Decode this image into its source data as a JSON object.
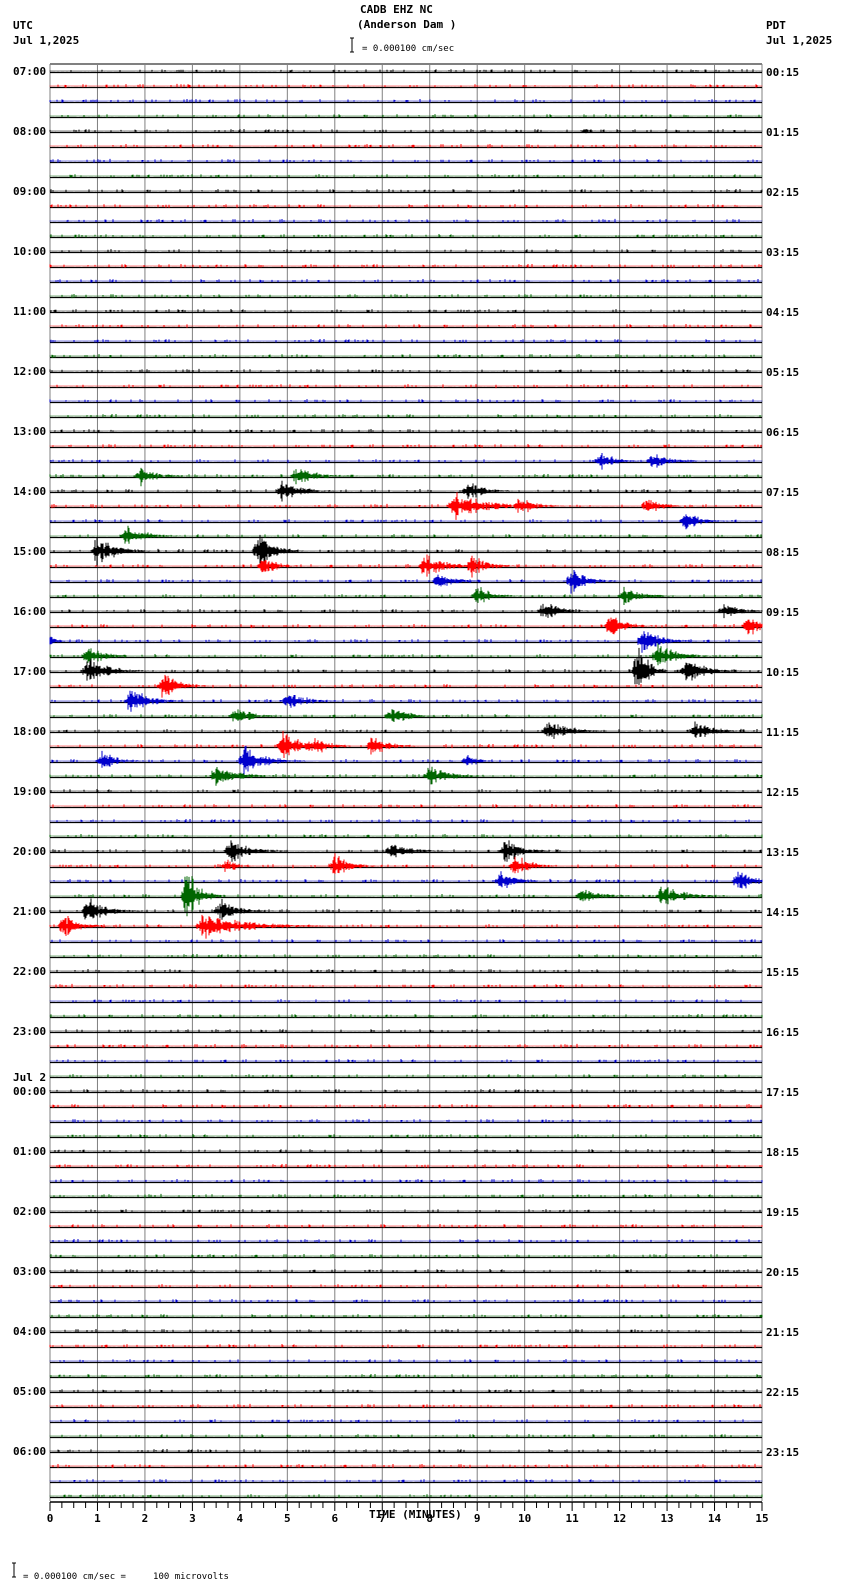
{
  "header": {
    "station": "CADB EHZ NC",
    "location": "(Anderson Dam )",
    "scale_text": "= 0.000100 cm/sec",
    "left_tz": "UTC",
    "left_date": "Jul 1,2025",
    "right_tz": "PDT",
    "right_date": "Jul 1,2025"
  },
  "footer": {
    "xlabel": "TIME (MINUTES)",
    "scale_legend": "= 0.000100 cm/sec =     100 microvolts"
  },
  "colors": {
    "trace_cycle": [
      "#000000",
      "#ff0000",
      "#0000cc",
      "#006600"
    ],
    "grid": "#808080",
    "baseline": "#000000"
  },
  "chart_data": {
    "type": "helicorder",
    "title": "CADB EHZ NC (Anderson Dam )",
    "xlabel": "TIME (MINUTES)",
    "xlim": [
      0,
      15
    ],
    "x_ticks": [
      "0",
      "1",
      "2",
      "3",
      "4",
      "5",
      "6",
      "7",
      "8",
      "9",
      "10",
      "11",
      "12",
      "13",
      "14",
      "15"
    ],
    "trace_minutes": 15,
    "traces_per_hour": 4,
    "left_labels": [
      "07:00",
      "08:00",
      "09:00",
      "10:00",
      "11:00",
      "12:00",
      "13:00",
      "14:00",
      "15:00",
      "16:00",
      "17:00",
      "18:00",
      "19:00",
      "20:00",
      "21:00",
      "22:00",
      "23:00",
      "Jul 2\n00:00",
      "01:00",
      "02:00",
      "03:00",
      "04:00",
      "05:00",
      "06:00"
    ],
    "right_labels": [
      "00:15",
      "01:15",
      "02:15",
      "03:15",
      "04:15",
      "05:15",
      "06:15",
      "07:15",
      "08:15",
      "09:15",
      "10:15",
      "11:15",
      "12:15",
      "13:15",
      "14:15",
      "15:15",
      "16:15",
      "17:15",
      "18:15",
      "19:15",
      "20:15",
      "21:15",
      "22:15",
      "23:15"
    ],
    "events": [
      {
        "row": 4,
        "min": 11.3,
        "amp": 3,
        "dur": 0.2
      },
      {
        "row": 26,
        "min": 11.6,
        "amp": 9,
        "dur": 0.6
      },
      {
        "row": 26,
        "min": 12.7,
        "amp": 8,
        "dur": 0.7
      },
      {
        "row": 27,
        "min": 1.9,
        "amp": 10,
        "dur": 0.6
      },
      {
        "row": 27,
        "min": 5.2,
        "amp": 10,
        "dur": 0.8
      },
      {
        "row": 28,
        "min": 4.9,
        "amp": 12,
        "dur": 0.7
      },
      {
        "row": 28,
        "min": 8.8,
        "amp": 11,
        "dur": 0.6
      },
      {
        "row": 29,
        "min": 8.5,
        "amp": 14,
        "dur": 1.2
      },
      {
        "row": 29,
        "min": 9.9,
        "amp": 10,
        "dur": 0.6
      },
      {
        "row": 29,
        "min": 12.6,
        "amp": 10,
        "dur": 0.5
      },
      {
        "row": 30,
        "min": 13.4,
        "amp": 10,
        "dur": 0.6
      },
      {
        "row": 31,
        "min": 1.6,
        "amp": 10,
        "dur": 0.8
      },
      {
        "row": 32,
        "min": 1.0,
        "amp": 16,
        "dur": 0.7
      },
      {
        "row": 32,
        "min": 4.4,
        "amp": 18,
        "dur": 0.6
      },
      {
        "row": 33,
        "min": 4.5,
        "amp": 11,
        "dur": 0.5
      },
      {
        "row": 33,
        "min": 7.9,
        "amp": 12,
        "dur": 0.8
      },
      {
        "row": 33,
        "min": 8.9,
        "amp": 12,
        "dur": 0.6
      },
      {
        "row": 34,
        "min": 8.2,
        "amp": 9,
        "dur": 0.6
      },
      {
        "row": 34,
        "min": 11.0,
        "amp": 13,
        "dur": 0.6
      },
      {
        "row": 35,
        "min": 9.0,
        "amp": 10,
        "dur": 0.6
      },
      {
        "row": 35,
        "min": 12.1,
        "amp": 9,
        "dur": 0.7
      },
      {
        "row": 36,
        "min": 10.4,
        "amp": 12,
        "dur": 0.6
      },
      {
        "row": 36,
        "min": 14.2,
        "amp": 8,
        "dur": 0.7
      },
      {
        "row": 37,
        "min": 11.8,
        "amp": 12,
        "dur": 0.6
      },
      {
        "row": 37,
        "min": 14.7,
        "amp": 12,
        "dur": 0.5
      },
      {
        "row": 38,
        "min": 12.5,
        "amp": 14,
        "dur": 0.7
      },
      {
        "row": 38,
        "min": 0.0,
        "amp": 5,
        "dur": 0.3
      },
      {
        "row": 39,
        "min": 0.8,
        "amp": 12,
        "dur": 0.6
      },
      {
        "row": 39,
        "min": 12.8,
        "amp": 12,
        "dur": 0.8
      },
      {
        "row": 40,
        "min": 0.8,
        "amp": 14,
        "dur": 0.8
      },
      {
        "row": 40,
        "min": 12.4,
        "amp": 28,
        "dur": 0.4
      },
      {
        "row": 40,
        "min": 13.4,
        "amp": 12,
        "dur": 0.8
      },
      {
        "row": 41,
        "min": 2.4,
        "amp": 14,
        "dur": 0.6
      },
      {
        "row": 42,
        "min": 1.7,
        "amp": 14,
        "dur": 0.7
      },
      {
        "row": 42,
        "min": 5.0,
        "amp": 10,
        "dur": 0.7
      },
      {
        "row": 43,
        "min": 3.9,
        "amp": 11,
        "dur": 0.6
      },
      {
        "row": 43,
        "min": 7.2,
        "amp": 11,
        "dur": 0.6
      },
      {
        "row": 44,
        "min": 10.5,
        "amp": 12,
        "dur": 0.8
      },
      {
        "row": 44,
        "min": 13.6,
        "amp": 10,
        "dur": 0.7
      },
      {
        "row": 45,
        "min": 4.9,
        "amp": 14,
        "dur": 0.9
      },
      {
        "row": 45,
        "min": 6.8,
        "amp": 11,
        "dur": 0.6
      },
      {
        "row": 45,
        "min": 5.6,
        "amp": 10,
        "dur": 0.5
      },
      {
        "row": 46,
        "min": 1.1,
        "amp": 10,
        "dur": 0.6
      },
      {
        "row": 46,
        "min": 4.1,
        "amp": 16,
        "dur": 0.8
      },
      {
        "row": 46,
        "min": 8.8,
        "amp": 7,
        "dur": 0.4
      },
      {
        "row": 47,
        "min": 3.5,
        "amp": 12,
        "dur": 0.8
      },
      {
        "row": 47,
        "min": 8.0,
        "amp": 10,
        "dur": 0.8
      },
      {
        "row": 52,
        "min": 3.8,
        "amp": 12,
        "dur": 0.8
      },
      {
        "row": 52,
        "min": 7.2,
        "amp": 10,
        "dur": 0.7
      },
      {
        "row": 52,
        "min": 9.6,
        "amp": 14,
        "dur": 0.6
      },
      {
        "row": 53,
        "min": 3.7,
        "amp": 8,
        "dur": 0.4
      },
      {
        "row": 53,
        "min": 6.0,
        "amp": 12,
        "dur": 0.6
      },
      {
        "row": 53,
        "min": 9.8,
        "amp": 12,
        "dur": 0.6
      },
      {
        "row": 54,
        "min": 9.5,
        "amp": 10,
        "dur": 0.6
      },
      {
        "row": 54,
        "min": 14.5,
        "amp": 12,
        "dur": 0.7
      },
      {
        "row": 55,
        "min": 2.9,
        "amp": 28,
        "dur": 0.5
      },
      {
        "row": 55,
        "min": 11.2,
        "amp": 8,
        "dur": 0.8
      },
      {
        "row": 55,
        "min": 12.9,
        "amp": 11,
        "dur": 0.9
      },
      {
        "row": 56,
        "min": 0.8,
        "amp": 14,
        "dur": 0.7
      },
      {
        "row": 56,
        "min": 3.6,
        "amp": 12,
        "dur": 0.7
      },
      {
        "row": 57,
        "min": 0.3,
        "amp": 12,
        "dur": 0.6
      },
      {
        "row": 57,
        "min": 3.2,
        "amp": 12,
        "dur": 1.8
      }
    ]
  }
}
